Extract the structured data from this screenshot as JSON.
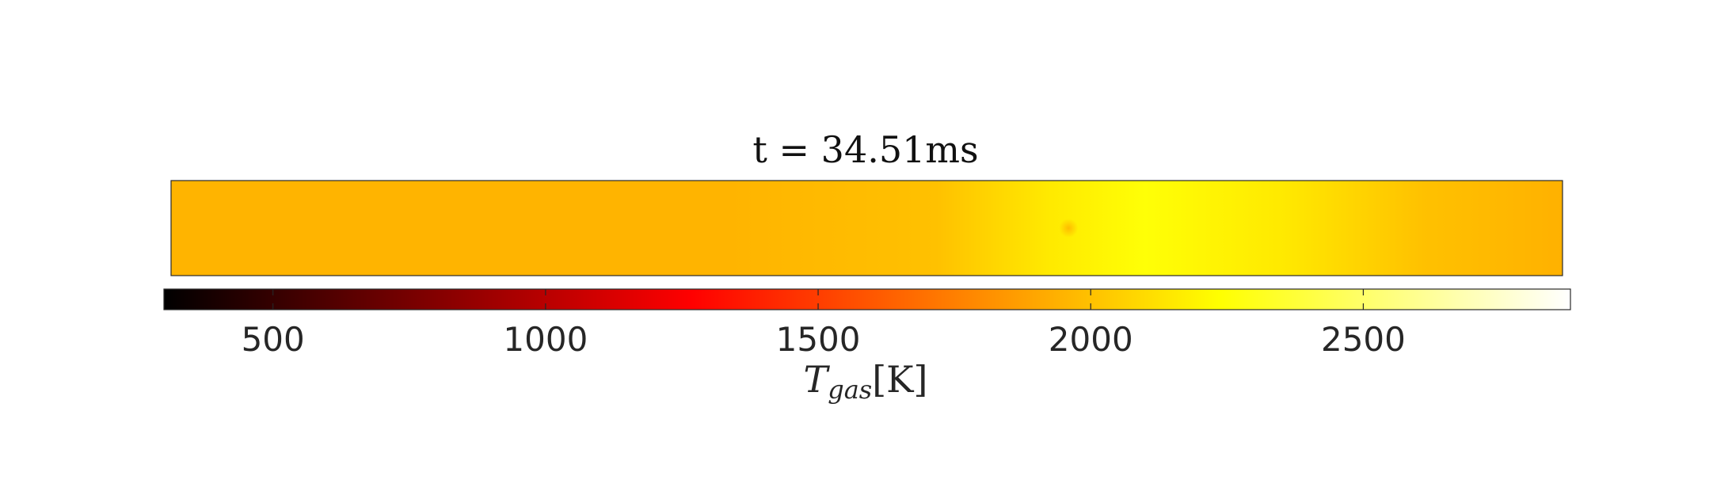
{
  "chart_data": {
    "type": "heatmap",
    "title": "t = 34.51ms",
    "colormap": "hot",
    "colorbar": {
      "label_main": "T",
      "label_sub": "gas",
      "label_unit": "[K]",
      "range": [
        300,
        2880
      ],
      "ticks": [
        500,
        1000,
        1500,
        2000,
        2500
      ],
      "orientation": "horizontal",
      "placement": "below"
    },
    "field": {
      "description_axis": "x",
      "x_range": [
        0,
        1
      ],
      "profile": [
        {
          "x": 0.0,
          "value": 1950
        },
        {
          "x": 0.4,
          "value": 1950
        },
        {
          "x": 0.55,
          "value": 2000
        },
        {
          "x": 0.63,
          "value": 2150
        },
        {
          "x": 0.7,
          "value": 2250
        },
        {
          "x": 0.8,
          "value": 2150
        },
        {
          "x": 0.9,
          "value": 2000
        },
        {
          "x": 1.0,
          "value": 1940
        }
      ],
      "hotspot": {
        "x": 0.645,
        "y": 0.5,
        "value": 1960
      }
    }
  }
}
